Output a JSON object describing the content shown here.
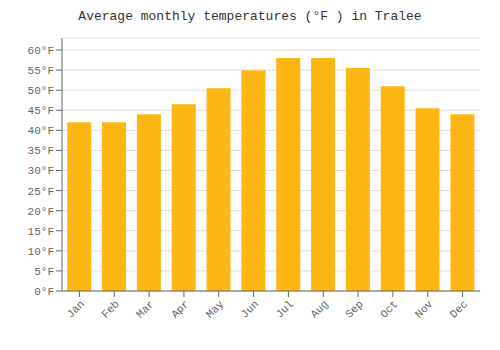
{
  "chart_data": {
    "type": "bar",
    "title": "Average monthly temperatures (°F ) in Tralee",
    "categories": [
      "Jan",
      "Feb",
      "Mar",
      "Apr",
      "May",
      "Jun",
      "Jul",
      "Aug",
      "Sep",
      "Oct",
      "Nov",
      "Dec"
    ],
    "values": [
      42,
      42,
      44,
      46.5,
      50.5,
      55,
      58,
      58,
      55.5,
      51,
      45.5,
      44
    ],
    "color": "#FDB714",
    "ylim": [
      0,
      63
    ],
    "yticks": [
      {
        "value": 0,
        "label": "0°F"
      },
      {
        "value": 5,
        "label": "5°F"
      },
      {
        "value": 10,
        "label": "10°F"
      },
      {
        "value": 15,
        "label": "15°F"
      },
      {
        "value": 20,
        "label": "20°F"
      },
      {
        "value": 25,
        "label": "25°F"
      },
      {
        "value": 30,
        "label": "30°F"
      },
      {
        "value": 35,
        "label": "35°F"
      },
      {
        "value": 40,
        "label": "40°F"
      },
      {
        "value": 45,
        "label": "45°F"
      },
      {
        "value": 50,
        "label": "50°F"
      },
      {
        "value": 55,
        "label": "55°F"
      },
      {
        "value": 60,
        "label": "60°F"
      }
    ],
    "grid": true
  }
}
